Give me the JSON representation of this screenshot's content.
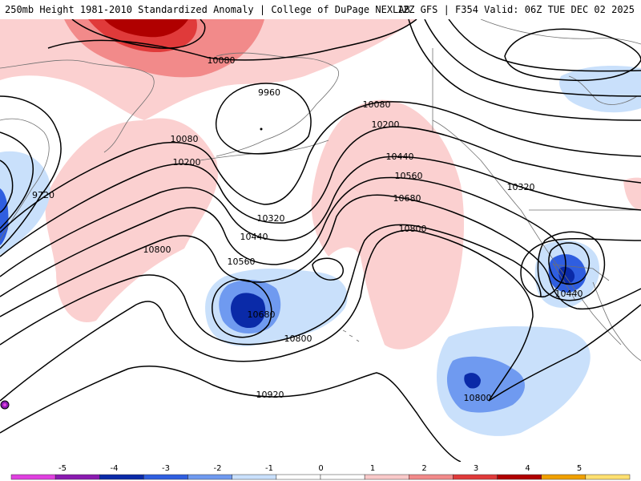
{
  "header": {
    "title_left": "250mb Height 1981-2010 Standardized Anomaly | College of DuPage NEXLAB",
    "title_right": "12Z GFS | F354 Valid: 06Z TUE DEC 02 2025"
  },
  "contour_labels": [
    {
      "id": "c10080-nw",
      "text": "10080"
    },
    {
      "id": "c9960",
      "text": "9960"
    },
    {
      "id": "c10080-ak",
      "text": "10080"
    },
    {
      "id": "c10200-ak",
      "text": "10200"
    },
    {
      "id": "c10080-w",
      "text": "10080"
    },
    {
      "id": "c10200-w",
      "text": "10200"
    },
    {
      "id": "c9720",
      "text": "9720"
    },
    {
      "id": "c10440-c",
      "text": "10440"
    },
    {
      "id": "c10560-c",
      "text": "10560"
    },
    {
      "id": "c10680-c",
      "text": "10680"
    },
    {
      "id": "c10320-c",
      "text": "10320"
    },
    {
      "id": "c10440-w",
      "text": "10440"
    },
    {
      "id": "c10320-e",
      "text": "10320"
    },
    {
      "id": "c10800-w",
      "text": "10800"
    },
    {
      "id": "c10560-w",
      "text": "10560"
    },
    {
      "id": "c10800-c",
      "text": "10800"
    },
    {
      "id": "c10680-low",
      "text": "10680"
    },
    {
      "id": "c10800-low",
      "text": "10800"
    },
    {
      "id": "c10440-sw",
      "text": "10440"
    },
    {
      "id": "c10920",
      "text": "10920"
    },
    {
      "id": "c10800-s",
      "text": "10800"
    }
  ],
  "colorbar": {
    "ticks": [
      "-5",
      "-4",
      "-3",
      "-2",
      "-1",
      "0",
      "1",
      "2",
      "3",
      "4",
      "5"
    ],
    "colors": [
      "#e040e0",
      "#8a1ab0",
      "#0a2aa8",
      "#2f5ee0",
      "#6f9af0",
      "#c9e0fb",
      "#ffffff",
      "#ffffff",
      "#f9c9c9",
      "#f28a8a",
      "#e03a3a",
      "#b00000",
      "#f0a000",
      "#ffe070"
    ]
  }
}
